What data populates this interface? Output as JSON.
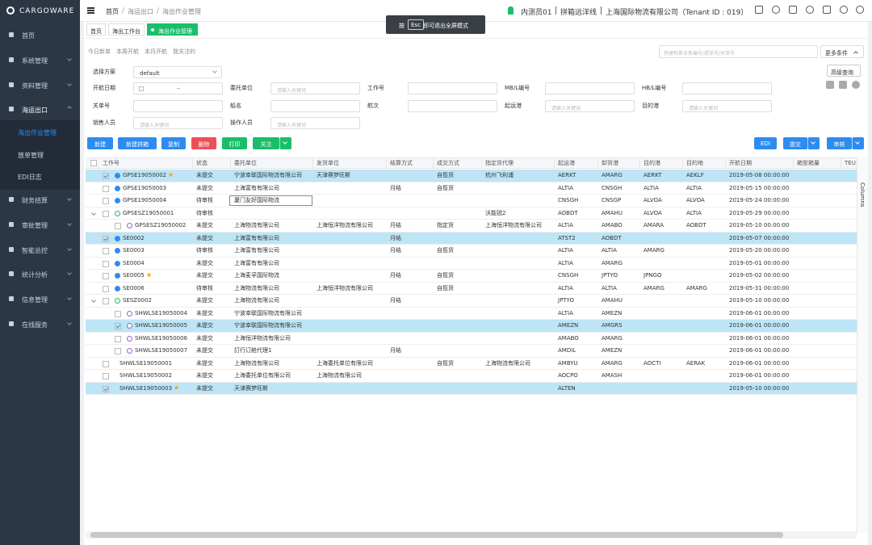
{
  "sidebar": {
    "logo": "CARGOWARE",
    "menu": [
      {
        "label": "首页"
      },
      {
        "label": "系统管理"
      },
      {
        "label": "资料管理"
      },
      {
        "label": "海运出口",
        "children": [
          "海出作业管理",
          "放单管理",
          "EDI日志"
        ]
      },
      {
        "label": "财务结算"
      },
      {
        "label": "审批管理"
      },
      {
        "label": "智能总控"
      },
      {
        "label": "统计分析"
      },
      {
        "label": "信息管理"
      },
      {
        "label": "在线服务"
      }
    ]
  },
  "topbar": {
    "breadcrumb": [
      "首页",
      "海运出口",
      "海出作业管理"
    ],
    "toast": {
      "prefix": "按",
      "key": "Esc",
      "suffix": "即可退出全屏模式"
    },
    "user": "内测员01",
    "line": "拼箱远洋线",
    "company": "上海国际物流有限公司（Tenant ID : 019）"
  },
  "tabs": [
    "首页",
    "海出工作台",
    "海出作业管理"
  ],
  "quick_filters": [
    "今日新单",
    "本周开航",
    "本月开航",
    "我关注的"
  ],
  "search_placeholder": "快捷检索业务编号/提单号/关单号",
  "more_conditions": "更多条件",
  "form": {
    "scheme_label": "选择方案",
    "scheme_value": "default",
    "advanced": "高级查询",
    "range_separator": "~",
    "fields": [
      [
        {
          "label": "开航日期",
          "placeholder": null
        },
        {
          "label": "委托单位",
          "placeholder": "请输入关键词"
        },
        {
          "label": "工作号",
          "placeholder": null
        },
        {
          "label": "MB/L编号",
          "placeholder": null
        },
        {
          "label": "HB/L编号",
          "placeholder": null
        }
      ],
      [
        {
          "label": "关单号",
          "placeholder": null
        },
        {
          "label": "船名",
          "placeholder": null
        },
        {
          "label": "航次",
          "placeholder": null
        },
        {
          "label": "起运港",
          "placeholder": "请输入关键词"
        },
        {
          "label": "目的港",
          "placeholder": "请输入关键词"
        }
      ],
      [
        {
          "label": "销售人员",
          "placeholder": "请输入关键词"
        },
        {
          "label": "操作人员",
          "placeholder": "请输入关键词"
        }
      ]
    ]
  },
  "buttons_left": [
    {
      "label": "新建",
      "color": "#2d8cf0"
    },
    {
      "label": "新建拼箱",
      "color": "#2d8cf0"
    },
    {
      "label": "复制",
      "color": "#2d8cf0"
    },
    {
      "label": "删除",
      "color": "#ed4f56"
    },
    {
      "label": "打印",
      "color": "#19be6b"
    },
    {
      "label": "关注",
      "color": "#19be6b",
      "dropdown": true
    }
  ],
  "buttons_right": [
    {
      "label": "EDI",
      "color": "#2d8cf0"
    },
    {
      "label": "提交",
      "color": "#2d8cf0",
      "dropdown": true
    },
    {
      "label": "审核",
      "color": "#2d8cf0",
      "dropdown": true
    }
  ],
  "table": {
    "side_label": "Columns",
    "columns": [
      "工作号",
      "状态",
      "委托单位",
      "发货单位",
      "结算方式",
      "成交方式",
      "指定货代理",
      "起运港",
      "卸货港",
      "目的港",
      "目的地",
      "开航日期",
      "箱型箱量",
      "TEU"
    ],
    "rows": [
      {
        "cells": [
          "GPSE19050002",
          "未提交",
          "宁波幸联国际物流有限公司",
          "天津赛梦旺斯",
          null,
          "自揽货",
          "杭州飞利浦",
          "AERKT",
          "AMARG",
          "AERKT",
          "AEKLF",
          "2019-05-08 00:00:00",
          null,
          null
        ],
        "selected": true,
        "star": true,
        "level": 0,
        "icon": true
      },
      {
        "cells": [
          "GPSE19050003",
          "未提交",
          "上海富有有限公司",
          null,
          "月结",
          "自揽货",
          null,
          "ALTIA",
          "CNSGH",
          "ALTIA",
          "ALTIA",
          "2019-05-15 00:00:00",
          null,
          null
        ],
        "level": 0,
        "icon": true
      },
      {
        "cells": [
          "GPSE19050004",
          "待审核",
          "厦门友好国际物流",
          null,
          null,
          null,
          null,
          "CNSGH",
          "CNSGP",
          "ALVOA",
          "ALVOA",
          "2019-05-24 00:00:00",
          null,
          null
        ],
        "level": 0,
        "icon": true,
        "editing": true
      },
      {
        "cells": [
          "GPSESZ19050001",
          "待审核",
          null,
          null,
          null,
          null,
          "沃能锐2",
          "AOBDT",
          "AMAHU",
          "ALVOA",
          "ALTIA",
          "2019-05-29 00:00:00",
          null,
          null
        ],
        "level": 0,
        "icon": true,
        "group": true
      },
      {
        "cells": [
          "GPSESZ19050002",
          "未提交",
          "上海物流有限公司",
          "上海恒洋物流有限公司",
          "月结",
          "指定货",
          "上海恒洋物流有限公司",
          "ALTIA",
          "AMABO",
          "AMARA",
          "AOBDT",
          "2019-05-10 00:00:00",
          null,
          null
        ],
        "level": 1,
        "icon": true
      },
      {
        "cells": [
          "SE0002",
          "未提交",
          "上海富有有限公司",
          null,
          "月结",
          null,
          null,
          "ATST2",
          "AOBDT",
          null,
          null,
          "2019-05-07 00:00:00",
          null,
          null
        ],
        "selected": true,
        "level": 0,
        "icon": true
      },
      {
        "cells": [
          "SE0003",
          "待审核",
          "上海富有有限公司",
          null,
          "月结",
          "自揽货",
          null,
          "ALTIA",
          "ALTIA",
          "AMARG",
          null,
          "2019-05-20 00:00:00",
          null,
          null
        ],
        "level": 0,
        "icon": true
      },
      {
        "cells": [
          "SE0004",
          "未提交",
          "上海富有有限公司",
          null,
          null,
          null,
          null,
          "ALTIA",
          "AMARG",
          null,
          null,
          "2019-05-01 00:00:00",
          null,
          null
        ],
        "level": 0,
        "icon": true
      },
      {
        "cells": [
          "SE0005",
          "未提交",
          "上海麦孚国际物流",
          null,
          "月结",
          "自揽货",
          null,
          "CNSGH",
          "JPTYO",
          "JPNGO",
          null,
          "2019-05-02 00:00:00",
          null,
          null
        ],
        "star": true,
        "level": 0,
        "icon": true
      },
      {
        "cells": [
          "SE0006",
          "待审核",
          "上海物流有限公司",
          "上海恒洋物流有限公司",
          null,
          "自揽货",
          null,
          "ALTIA",
          "ALTIA",
          "AMARG",
          "AMARG",
          "2019-05-31 00:00:00",
          null,
          null
        ],
        "level": 0,
        "icon": true
      },
      {
        "cells": [
          "SESZ0002",
          "未提交",
          "上海物流有限公司",
          null,
          "月结",
          null,
          null,
          "JPTYO",
          "AMAHU",
          null,
          null,
          "2019-05-10 00:00:00",
          null,
          null
        ],
        "level": 0,
        "icon": true,
        "group": true
      },
      {
        "cells": [
          "SHWLSE19050004",
          "未提交",
          "宁波幸联国际物流有限公司",
          null,
          null,
          null,
          null,
          "ALTIA",
          "AMEZN",
          null,
          null,
          "2019-06-01 00:00:00",
          null,
          null
        ],
        "level": 1,
        "icon": true
      },
      {
        "cells": [
          "SHWLSE19050005",
          "未提交",
          "宁波幸联国际物流有限公司",
          null,
          null,
          null,
          null,
          "AMEZN",
          "AMGRS",
          null,
          null,
          "2019-06-01 00:00:00",
          null,
          null
        ],
        "selected": true,
        "level": 1,
        "icon": true
      },
      {
        "cells": [
          "SHWLSE19050006",
          "未提交",
          "上海恒洋物流有限公司",
          null,
          null,
          null,
          null,
          "AMABO",
          "AMARG",
          null,
          null,
          "2019-06-01 00:00:00",
          null,
          null
        ],
        "level": 1,
        "icon": true
      },
      {
        "cells": [
          "SHWLSE19050007",
          "未提交",
          "訂行订舱代理1",
          null,
          "月结",
          null,
          null,
          "AMDIL",
          "AMEZN",
          null,
          null,
          "2019-06-01 00:00:00",
          null,
          null
        ],
        "level": 1,
        "icon": true
      },
      {
        "cells": [
          "SHWLSE19050001",
          "未提交",
          "上海物流有限公司",
          "上海委托单位有限公司",
          null,
          "自揽货",
          "上海物流有限公司",
          "AMBYU",
          "AMARG",
          "AOCTI",
          "AERAK",
          "2019-06-01 00:00:00",
          null,
          null
        ],
        "level": 0
      },
      {
        "cells": [
          "SHWLSE19050002",
          "未提交",
          "上海委托单位有限公司",
          "上海物流有限公司",
          null,
          null,
          null,
          "AOCPO",
          "AMASH",
          null,
          null,
          "2019-06-01 00:00:00",
          null,
          null
        ],
        "level": 0
      },
      {
        "cells": [
          "SHWLSE19050003",
          "未提交",
          "天津赛梦旺斯",
          null,
          null,
          null,
          null,
          "ALTEN",
          null,
          null,
          null,
          "2019-05-10 00:00:00",
          null,
          null
        ],
        "selected": true,
        "star": true,
        "level": 0
      }
    ]
  }
}
